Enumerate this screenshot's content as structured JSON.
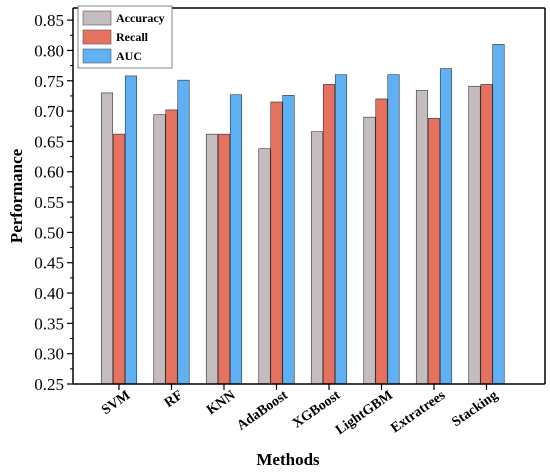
{
  "chart_data": {
    "type": "bar",
    "xlabel": "Methods",
    "ylabel": "Performance",
    "ylim": [
      0.25,
      0.87
    ],
    "yticks": [
      0.25,
      0.3,
      0.35,
      0.4,
      0.45,
      0.5,
      0.55,
      0.6,
      0.65,
      0.7,
      0.75,
      0.8,
      0.85
    ],
    "ytick_labels": [
      "0.25",
      "0.30",
      "0.35",
      "0.40",
      "0.45",
      "0.50",
      "0.55",
      "0.60",
      "0.65",
      "0.70",
      "0.75",
      "0.80",
      "0.85"
    ],
    "categories": [
      "SVM",
      "RF",
      "KNN",
      "AdaBoost",
      "XGBoost",
      "LightGBM",
      "Extratrees",
      "Stacking"
    ],
    "series": [
      {
        "name": "Accuracy",
        "color": "#c4bcbe",
        "values": [
          0.73,
          0.694,
          0.662,
          0.638,
          0.666,
          0.69,
          0.734,
          0.741
        ]
      },
      {
        "name": "Recall",
        "color": "#e5725f",
        "values": [
          0.662,
          0.702,
          0.662,
          0.715,
          0.744,
          0.72,
          0.688,
          0.744
        ]
      },
      {
        "name": "AUC",
        "color": "#5fb1f3",
        "values": [
          0.758,
          0.751,
          0.727,
          0.726,
          0.76,
          0.76,
          0.77,
          0.81
        ]
      }
    ],
    "legend_position": "top-left",
    "grid": false
  }
}
